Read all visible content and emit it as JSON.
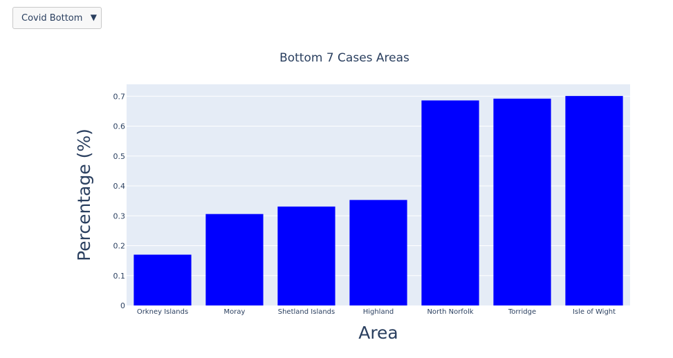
{
  "dropdown": {
    "selected": "Covid Bottom",
    "arrow_icon": "triangle-down-icon"
  },
  "chart_data": {
    "type": "bar",
    "title": "Bottom 7 Cases Areas",
    "xlabel": "Area",
    "ylabel": "Percentage (%)",
    "categories": [
      "Orkney Islands",
      "Moray",
      "Shetland Islands",
      "Highland",
      "North Norfolk",
      "Torridge",
      "Isle of Wight"
    ],
    "values": [
      0.17,
      0.306,
      0.331,
      0.353,
      0.686,
      0.692,
      0.701
    ],
    "ylim": [
      0,
      0.74
    ],
    "yticks": [
      {
        "value": 0,
        "label": "0"
      },
      {
        "value": 0.1,
        "label": "0.1"
      },
      {
        "value": 0.2,
        "label": "0.2"
      },
      {
        "value": 0.3,
        "label": "0.3"
      },
      {
        "value": 0.4,
        "label": "0.4"
      },
      {
        "value": 0.5,
        "label": "0.5"
      },
      {
        "value": 0.6,
        "label": "0.6"
      },
      {
        "value": 0.7,
        "label": "0.7"
      }
    ],
    "bar_color": "#0000ff",
    "plot_bg": "#e5ecf6",
    "grid": true
  }
}
